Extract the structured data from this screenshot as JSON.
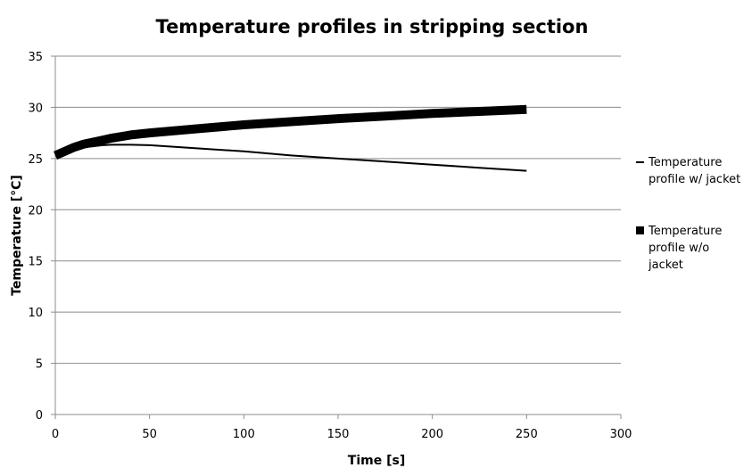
{
  "chart_data": {
    "type": "line",
    "title": "Temperature profiles in stripping section",
    "xlabel": "Time [s]",
    "ylabel": "Temperature [°C]",
    "xlim": [
      0,
      300
    ],
    "ylim": [
      0,
      35
    ],
    "x_ticks": [
      0,
      50,
      100,
      150,
      200,
      250,
      300
    ],
    "y_ticks": [
      0,
      5,
      10,
      15,
      20,
      25,
      30,
      35
    ],
    "grid": "horizontal",
    "legend_position": "right",
    "series": [
      {
        "name": "Temperature profile w/ jacket",
        "color": "#000000",
        "style": "thin",
        "x": [
          0,
          5,
          10,
          15,
          20,
          25,
          30,
          40,
          50,
          75,
          100,
          125,
          150,
          175,
          200,
          225,
          250
        ],
        "y": [
          25.3,
          25.6,
          25.9,
          26.1,
          26.2,
          26.3,
          26.35,
          26.35,
          26.3,
          26.0,
          25.7,
          25.3,
          25.0,
          24.7,
          24.4,
          24.1,
          23.8
        ]
      },
      {
        "name": "Temperature profile w/o jacket",
        "color": "#000000",
        "style": "thick",
        "x": [
          0,
          5,
          10,
          15,
          20,
          25,
          30,
          40,
          50,
          75,
          100,
          125,
          150,
          175,
          200,
          225,
          250
        ],
        "y": [
          25.3,
          25.7,
          26.1,
          26.4,
          26.6,
          26.8,
          27.0,
          27.3,
          27.5,
          27.9,
          28.3,
          28.6,
          28.9,
          29.15,
          29.4,
          29.6,
          29.8
        ]
      }
    ]
  }
}
